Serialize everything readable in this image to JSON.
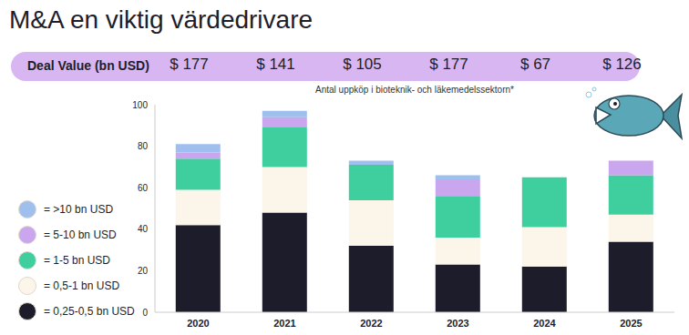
{
  "chart_data": {
    "type": "bar",
    "title": "M&A en viktig värdedrivare",
    "subtitle": "Antal uppköp i bioteknik- och läkemedelssektorn*",
    "categories": [
      "2020",
      "2021",
      "2022",
      "2023",
      "2024",
      "2025"
    ],
    "series": [
      {
        "name": "= 0,25-0,5 bn USD",
        "color": "#1c1c2b",
        "values": [
          42,
          48,
          32,
          23,
          22,
          34
        ]
      },
      {
        "name": "= 0,5-1 bn USD",
        "color": "#fbf5ea",
        "values": [
          17,
          22,
          22,
          13,
          19,
          13
        ]
      },
      {
        "name": "= 1-5 bn USD",
        "color": "#3fcf9f",
        "values": [
          15,
          19,
          17,
          20,
          24,
          19
        ]
      },
      {
        "name": "= 5-10 bn USD",
        "color": "#c9a6ee",
        "values": [
          3,
          5,
          0,
          8,
          0,
          7
        ]
      },
      {
        "name": "= >10 bn USD",
        "color": "#9fc0ee",
        "values": [
          4,
          3,
          2,
          2,
          0,
          0
        ]
      }
    ],
    "ylim": [
      0,
      100
    ],
    "yticks": [
      0,
      20,
      40,
      60,
      80,
      100
    ],
    "stacked": true,
    "grid": false,
    "legend": "left",
    "deal_value": {
      "label": "Deal Value (bn USD)",
      "values": [
        177,
        141,
        105,
        177,
        67,
        126
      ],
      "value_labels": [
        "$ 177",
        "$ 141",
        "$ 105",
        "$ 177",
        "$ 67",
        "$ 126"
      ]
    }
  }
}
